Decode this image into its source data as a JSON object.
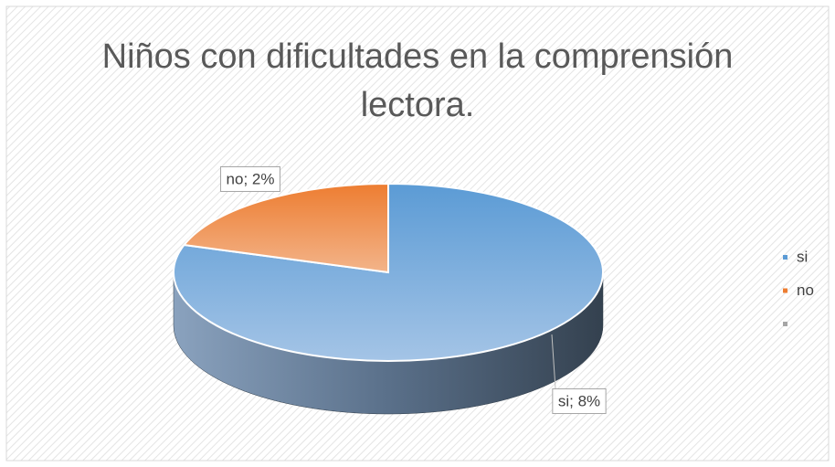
{
  "chart_data": {
    "type": "pie",
    "title": "Niños con dificultades en la comprensión lectora.",
    "categories": [
      "si",
      "no",
      null
    ],
    "values": [
      8,
      2,
      0
    ],
    "value_labels": [
      "si; 8%",
      "no; 2%",
      null
    ],
    "colors": [
      "#5b9bd5",
      "#ed7d31",
      "#a5a5a5"
    ],
    "legend": "right"
  }
}
